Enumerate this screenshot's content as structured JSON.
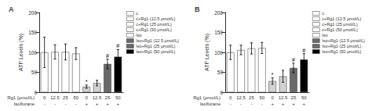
{
  "chart_data": [
    {
      "type": "bar",
      "title": "A",
      "categories": [
        "0",
        "12.5",
        "25",
        "50",
        "0",
        "12.5",
        "25",
        "50"
      ],
      "xlabel": "Rg1 (μmol/L)",
      "categories_2": [
        "-",
        "-",
        "-",
        "-",
        "+",
        "+",
        "+",
        "+"
      ],
      "xlabel_2": "Isoflurane",
      "ylabel": "ATP Levels (%)",
      "values": [
        100,
        101,
        101,
        97,
        14,
        23,
        71,
        89
      ],
      "errors": [
        38,
        18,
        20,
        15,
        4,
        7,
        12,
        18
      ],
      "annotations": [
        null,
        null,
        null,
        null,
        "*",
        null,
        "#",
        "#"
      ],
      "colors": [
        "white",
        "white",
        "white",
        "white",
        "lightgray",
        "lightgray",
        "dimgray",
        "black"
      ],
      "ylim": [
        0,
        200
      ],
      "yticks": [
        0,
        50,
        100,
        150,
        200
      ],
      "grid": false,
      "legend": "upper right",
      "legend_entries": [
        {
          "name": "c",
          "color": "white"
        },
        {
          "name": "c+Rg1 (12.5 μmol/L)",
          "color": "white"
        },
        {
          "name": "c+Rg1 (25 μmol/L)",
          "color": "white"
        },
        {
          "name": "c+Rg1 (50 μmol/L)",
          "color": "white"
        },
        {
          "name": "Iso",
          "color": "white"
        },
        {
          "name": "Iso+Rg1 (12.5 μmol/L)",
          "color": "dimgray"
        },
        {
          "name": "Iso+Rg1 (25 μmol/L)",
          "color": "dimgray"
        },
        {
          "name": "Iso+Rg1 (50 μmol/L)",
          "color": "black"
        }
      ]
    },
    {
      "type": "bar",
      "title": "B",
      "categories": [
        "0",
        "12.5",
        "25",
        "50",
        "0",
        "12.5",
        "25",
        "50"
      ],
      "xlabel": "Rg1 (μmol/L)",
      "categories_2": [
        "-",
        "-",
        "-",
        "-",
        "+",
        "+",
        "+",
        "+"
      ],
      "xlabel_2": "Isoflurane",
      "ylabel": "ATP Levels (%)",
      "values": [
        100,
        106,
        110,
        111,
        28,
        40,
        61,
        82
      ],
      "errors": [
        18,
        12,
        14,
        14,
        8,
        15,
        12,
        15
      ],
      "annotations": [
        null,
        null,
        null,
        null,
        "*",
        null,
        "#",
        "#"
      ],
      "colors": [
        "white",
        "white",
        "white",
        "white",
        "lightgray",
        "lightgray",
        "dimgray",
        "black"
      ],
      "ylim": [
        0,
        200
      ],
      "yticks": [
        0,
        50,
        100,
        150,
        200
      ],
      "grid": false,
      "legend": "upper right",
      "legend_entries": [
        {
          "name": "c",
          "color": "white"
        },
        {
          "name": "c+Rg1 (12.5 μmol/L)",
          "color": "white"
        },
        {
          "name": "c+Rg1 (25 μmol/L)",
          "color": "white"
        },
        {
          "name": "c+Rg1 (50 μmol/L)",
          "color": "white"
        },
        {
          "name": "Iso",
          "color": "white"
        },
        {
          "name": "Iso+Rg1 (12.5 μmol/L)",
          "color": "dimgray"
        },
        {
          "name": "Iso+Rg1 (25 μmol/L)",
          "color": "dimgray"
        },
        {
          "name": "Iso+Rg1 (50 μmol/L)",
          "color": "black"
        }
      ]
    }
  ]
}
